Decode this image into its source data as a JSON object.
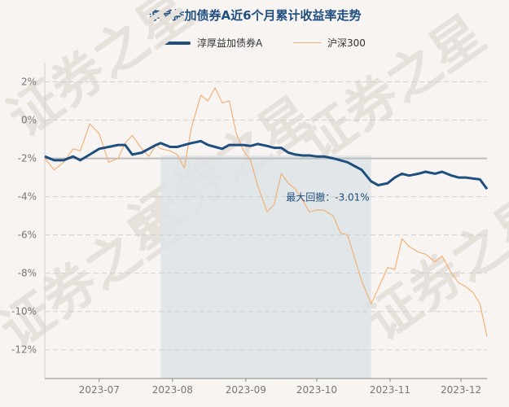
{
  "chart_data": {
    "type": "line",
    "title": "淳厚益加债券A近6个月累计收益率走势",
    "legend_position": "top-center",
    "grid": true,
    "ylim": [
      -13.5,
      3
    ],
    "yticks": [
      2,
      0,
      -2,
      -4,
      -6,
      -8,
      -10,
      -12
    ],
    "ytick_labels": [
      "2%",
      "0%",
      "-2%",
      "-4%",
      "-6%",
      "-8%",
      "-10%",
      "-12%"
    ],
    "x_range": [
      "2023-06-08",
      "2023-12-12"
    ],
    "xticks": [
      "2023-07",
      "2023-08",
      "2023-09",
      "2023-10",
      "2023-11",
      "2023-12"
    ],
    "xtick_dates": [
      "2023-07-01",
      "2023-08-01",
      "2023-09-01",
      "2023-10-01",
      "2023-11-01",
      "2023-12-01"
    ],
    "reference_line": -2,
    "max_drawdown": {
      "label": "最大回撤：-3.01%",
      "start": "2023-07-27",
      "end": "2023-10-24"
    },
    "watermark": "证券之星",
    "series": [
      {
        "name": "淳厚益加债券A",
        "color": "#1f4f7f",
        "points": [
          [
            "2023-06-08",
            -1.9
          ],
          [
            "2023-06-12",
            -2.1
          ],
          [
            "2023-06-16",
            -2.1
          ],
          [
            "2023-06-20",
            -1.9
          ],
          [
            "2023-06-23",
            -2.1
          ],
          [
            "2023-06-27",
            -1.8
          ],
          [
            "2023-07-01",
            -1.5
          ],
          [
            "2023-07-05",
            -1.4
          ],
          [
            "2023-07-09",
            -1.3
          ],
          [
            "2023-07-12",
            -1.3
          ],
          [
            "2023-07-15",
            -1.8
          ],
          [
            "2023-07-19",
            -1.7
          ],
          [
            "2023-07-22",
            -1.5
          ],
          [
            "2023-07-25",
            -1.3
          ],
          [
            "2023-07-27",
            -1.2
          ],
          [
            "2023-07-31",
            -1.4
          ],
          [
            "2023-08-03",
            -1.4
          ],
          [
            "2023-08-06",
            -1.3
          ],
          [
            "2023-08-09",
            -1.2
          ],
          [
            "2023-08-13",
            -1.1
          ],
          [
            "2023-08-16",
            -1.3
          ],
          [
            "2023-08-19",
            -1.4
          ],
          [
            "2023-08-22",
            -1.5
          ],
          [
            "2023-08-25",
            -1.3
          ],
          [
            "2023-08-28",
            -1.3
          ],
          [
            "2023-08-31",
            -1.3
          ],
          [
            "2023-09-03",
            -1.35
          ],
          [
            "2023-09-06",
            -1.25
          ],
          [
            "2023-09-10",
            -1.35
          ],
          [
            "2023-09-13",
            -1.45
          ],
          [
            "2023-09-16",
            -1.45
          ],
          [
            "2023-09-19",
            -1.7
          ],
          [
            "2023-09-22",
            -1.8
          ],
          [
            "2023-09-25",
            -1.85
          ],
          [
            "2023-09-28",
            -1.85
          ],
          [
            "2023-10-01",
            -1.9
          ],
          [
            "2023-10-04",
            -1.9
          ],
          [
            "2023-10-08",
            -2.0
          ],
          [
            "2023-10-11",
            -2.1
          ],
          [
            "2023-10-14",
            -2.2
          ],
          [
            "2023-10-17",
            -2.4
          ],
          [
            "2023-10-20",
            -2.6
          ],
          [
            "2023-10-24",
            -3.2
          ],
          [
            "2023-10-27",
            -3.4
          ],
          [
            "2023-10-31",
            -3.3
          ],
          [
            "2023-11-03",
            -3.0
          ],
          [
            "2023-11-06",
            -2.8
          ],
          [
            "2023-11-09",
            -2.9
          ],
          [
            "2023-11-13",
            -2.8
          ],
          [
            "2023-11-16",
            -2.7
          ],
          [
            "2023-11-20",
            -2.8
          ],
          [
            "2023-11-23",
            -2.7
          ],
          [
            "2023-11-27",
            -2.9
          ],
          [
            "2023-11-30",
            -3.0
          ],
          [
            "2023-12-03",
            -3.0
          ],
          [
            "2023-12-06",
            -3.05
          ],
          [
            "2023-12-09",
            -3.1
          ],
          [
            "2023-12-12",
            -3.6
          ]
        ]
      },
      {
        "name": "沪深300",
        "color": "#f0b27a",
        "points": [
          [
            "2023-06-08",
            -2.0
          ],
          [
            "2023-06-12",
            -2.6
          ],
          [
            "2023-06-16",
            -2.2
          ],
          [
            "2023-06-20",
            -1.5
          ],
          [
            "2023-06-23",
            -1.6
          ],
          [
            "2023-06-27",
            -0.2
          ],
          [
            "2023-07-01",
            -0.7
          ],
          [
            "2023-07-05",
            -2.2
          ],
          [
            "2023-07-09",
            -2.0
          ],
          [
            "2023-07-12",
            -1.2
          ],
          [
            "2023-07-15",
            -0.8
          ],
          [
            "2023-07-19",
            -1.5
          ],
          [
            "2023-07-22",
            -1.9
          ],
          [
            "2023-07-25",
            -1.3
          ],
          [
            "2023-07-27",
            -1.5
          ],
          [
            "2023-07-31",
            -1.6
          ],
          [
            "2023-08-03",
            -1.8
          ],
          [
            "2023-08-06",
            -2.5
          ],
          [
            "2023-08-09",
            -0.4
          ],
          [
            "2023-08-13",
            1.3
          ],
          [
            "2023-08-16",
            1.0
          ],
          [
            "2023-08-19",
            1.7
          ],
          [
            "2023-08-22",
            0.9
          ],
          [
            "2023-08-25",
            1.0
          ],
          [
            "2023-08-28",
            -0.7
          ],
          [
            "2023-08-31",
            -1.6
          ],
          [
            "2023-09-03",
            -2.1
          ],
          [
            "2023-09-06",
            -3.4
          ],
          [
            "2023-09-10",
            -4.8
          ],
          [
            "2023-09-13",
            -4.4
          ],
          [
            "2023-09-16",
            -2.8
          ],
          [
            "2023-09-19",
            -3.3
          ],
          [
            "2023-09-22",
            -3.6
          ],
          [
            "2023-09-25",
            -4.2
          ],
          [
            "2023-09-28",
            -4.8
          ],
          [
            "2023-10-01",
            -4.7
          ],
          [
            "2023-10-04",
            -4.7
          ],
          [
            "2023-10-08",
            -5.0
          ],
          [
            "2023-10-11",
            -5.9
          ],
          [
            "2023-10-14",
            -6.0
          ],
          [
            "2023-10-17",
            -7.2
          ],
          [
            "2023-10-20",
            -8.4
          ],
          [
            "2023-10-24",
            -9.6
          ],
          [
            "2023-10-27",
            -8.8
          ],
          [
            "2023-10-31",
            -7.7
          ],
          [
            "2023-11-03",
            -7.8
          ],
          [
            "2023-11-06",
            -6.2
          ],
          [
            "2023-11-09",
            -6.6
          ],
          [
            "2023-11-13",
            -6.9
          ],
          [
            "2023-11-16",
            -7.0
          ],
          [
            "2023-11-20",
            -7.4
          ],
          [
            "2023-11-23",
            -7.1
          ],
          [
            "2023-11-27",
            -8.0
          ],
          [
            "2023-11-30",
            -8.5
          ],
          [
            "2023-12-03",
            -8.7
          ],
          [
            "2023-12-06",
            -9.0
          ],
          [
            "2023-12-09",
            -9.6
          ],
          [
            "2023-12-12",
            -11.3
          ]
        ]
      }
    ]
  }
}
